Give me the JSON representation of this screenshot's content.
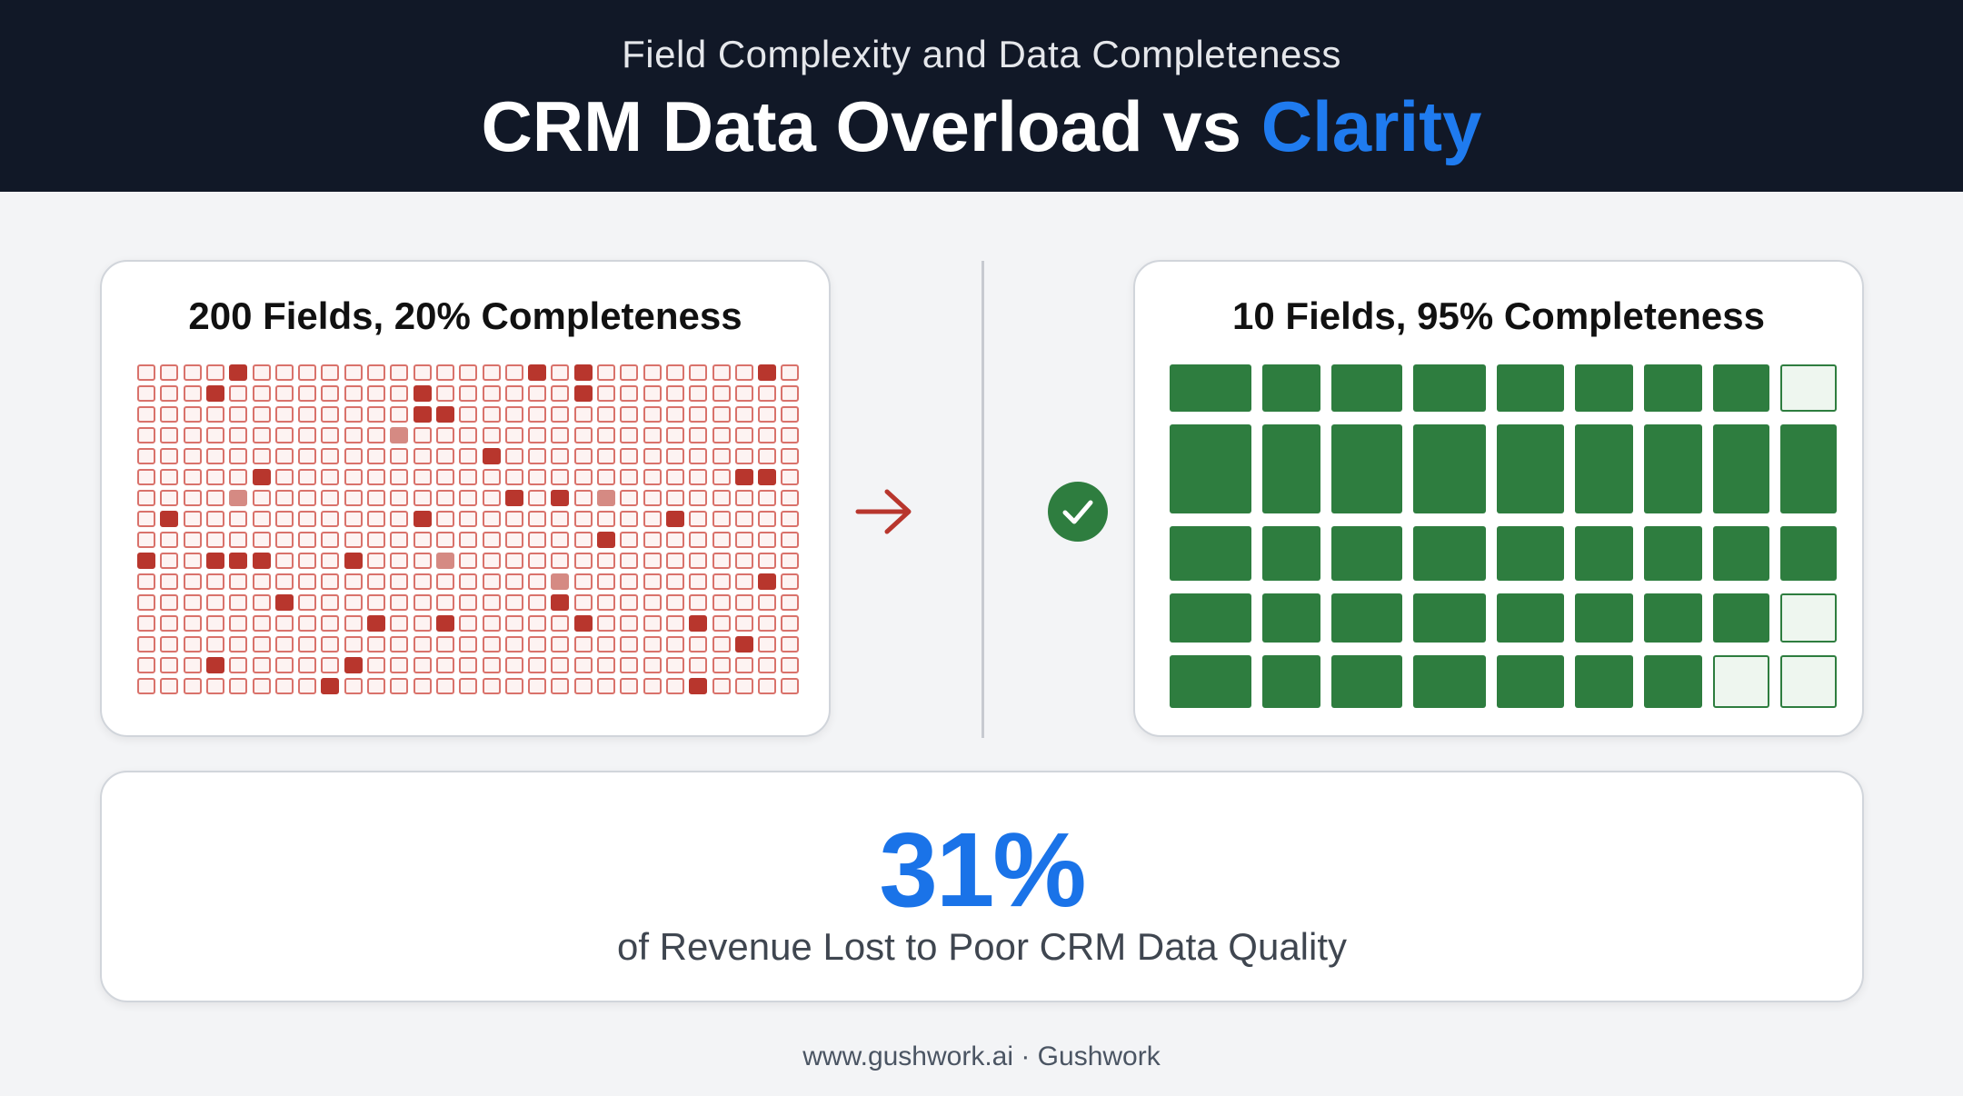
{
  "header": {
    "subtitle": "Field Complexity and Data Completeness",
    "title_main": "CRM Data Overload vs ",
    "title_accent": "Clarity"
  },
  "left_panel": {
    "title": "200 Fields, 20% Completeness",
    "grid": {
      "rows": 16,
      "cols": 29
    },
    "fill_color": "#b8362d",
    "empty_color": "#fdf3f2"
  },
  "right_panel": {
    "title": "10 Fields, 95% Completeness",
    "grid": {
      "rows": 5,
      "cols": 9,
      "empty_cells": [
        [
          0,
          8
        ],
        [
          3,
          8
        ],
        [
          4,
          7
        ],
        [
          4,
          8
        ]
      ]
    },
    "fill_color": "#2e7d3f"
  },
  "stat": {
    "value": "31%",
    "label": "of Revenue Lost to Poor CRM Data Quality"
  },
  "footer": {
    "text": "www.gushwork.ai · Gushwork"
  },
  "icons": {
    "arrow": "arrow-right-icon",
    "check": "check-circle-icon"
  },
  "colors": {
    "accent": "#1f7bef",
    "header_bg": "#111827"
  }
}
